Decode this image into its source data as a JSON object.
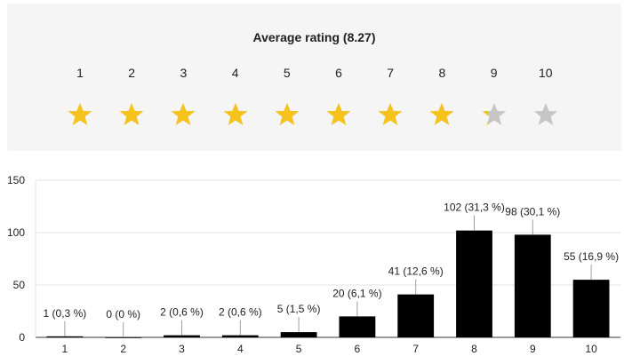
{
  "rating": {
    "title": "Average rating (8.27)",
    "average": 8.27,
    "max": 10,
    "star_numbers": [
      "1",
      "2",
      "3",
      "4",
      "5",
      "6",
      "7",
      "8",
      "9",
      "10"
    ],
    "filled_color": "#f6c31c",
    "empty_color": "#c6c6c6",
    "icon": "star-icon"
  },
  "chart_data": {
    "type": "bar",
    "categories": [
      "1",
      "2",
      "3",
      "4",
      "5",
      "6",
      "7",
      "8",
      "9",
      "10"
    ],
    "values": [
      1,
      0,
      2,
      2,
      5,
      20,
      41,
      102,
      98,
      55
    ],
    "data_labels": [
      "1 (0,3 %)",
      "0 (0 %)",
      "2 (0,6 %)",
      "2 (0,6 %)",
      "5 (1,5 %)",
      "20 (6,1 %)",
      "41 (12,6 %)",
      "102 (31,3 %)",
      "98 (30,1 %)",
      "55 (16,9 %)"
    ],
    "yticks": [
      0,
      50,
      100,
      150
    ],
    "ylim": [
      0,
      150
    ],
    "grid": true,
    "bar_color": "#000000",
    "title": "",
    "xlabel": "",
    "ylabel": ""
  }
}
